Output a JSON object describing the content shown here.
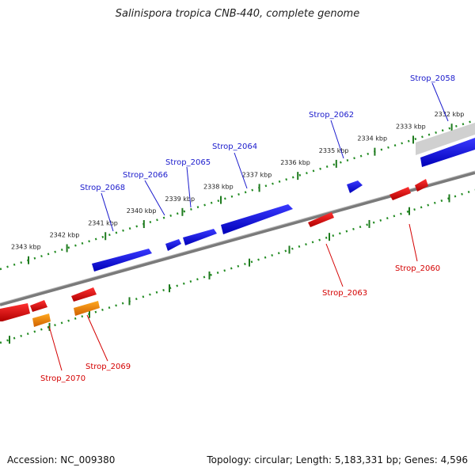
{
  "title": "Salinispora tropica CNB-440, complete genome",
  "footer": {
    "accession": "Accession: NC_009380",
    "summary": "Topology: circular; Length: 5,183,331 bp; Genes: 4,596"
  },
  "kbp_labels": [
    "2343 kbp",
    "2342 kbp",
    "2341 kbp",
    "2340 kbp",
    "2339 kbp",
    "2338 kbp",
    "2337 kbp",
    "2336 kbp",
    "2335 kbp",
    "2334 kbp",
    "2333 kbp",
    "2332 kbp"
  ],
  "forward_labels": [
    "Strop_2068",
    "Strop_2066",
    "Strop_2065",
    "Strop_2064",
    "Strop_2062",
    "Strop_2058"
  ],
  "reverse_labels": [
    "Strop_2070",
    "Strop_2069",
    "Strop_2063",
    "Strop_2060"
  ],
  "colors": {
    "forward_gene": "#0000e0",
    "reverse_gene": "#e00000",
    "rna_gene": "#ff8c00",
    "backbone": "#888888",
    "tick": "#228b22",
    "grey_feature": "#cfcfcf"
  }
}
